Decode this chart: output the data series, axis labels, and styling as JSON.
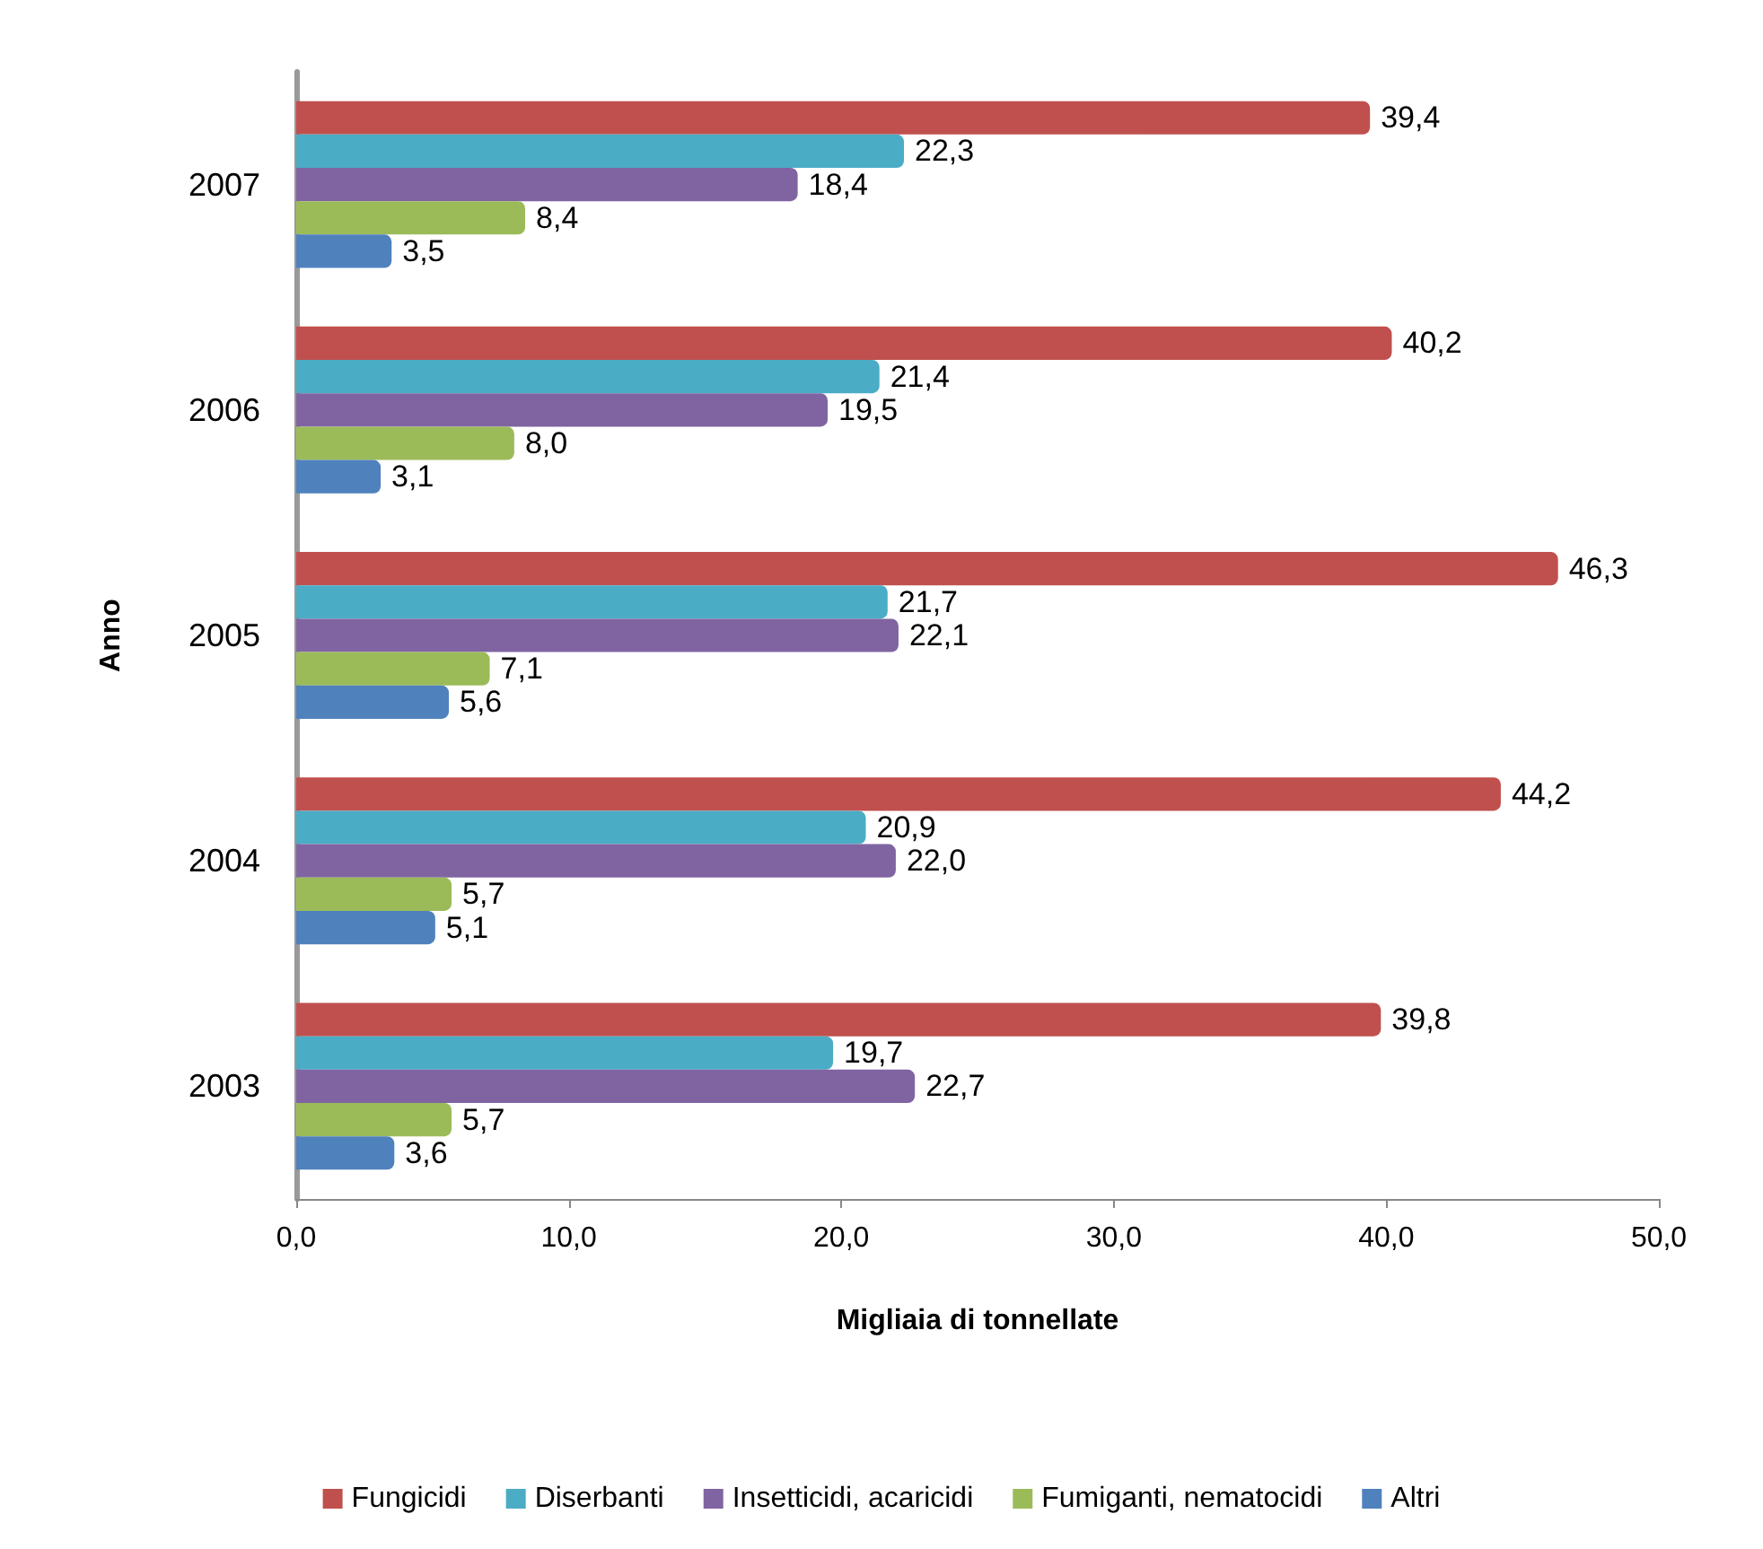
{
  "chart_data": {
    "type": "bar",
    "orientation": "horizontal",
    "xlabel": "Migliaia di tonnellate",
    "ylabel": "Anno",
    "categories": [
      "2007",
      "2006",
      "2005",
      "2004",
      "2003"
    ],
    "series": [
      {
        "name": "Fungicidi",
        "color": "#c0504d",
        "values": [
          39.4,
          40.2,
          46.3,
          44.2,
          39.8
        ],
        "value_labels": [
          "39,4",
          "40,2",
          "46,3",
          "44,2",
          "39,8"
        ]
      },
      {
        "name": "Diserbanti",
        "color": "#4bacc6",
        "values": [
          22.3,
          21.4,
          21.7,
          20.9,
          19.7
        ],
        "value_labels": [
          "22,3",
          "21,4",
          "21,7",
          "20,9",
          "19,7"
        ]
      },
      {
        "name": "Insetticidi, acaricidi",
        "color": "#8064a2",
        "values": [
          18.4,
          19.5,
          22.1,
          22.0,
          22.7
        ],
        "value_labels": [
          "18,4",
          "19,5",
          "22,1",
          "22,0",
          "22,7"
        ]
      },
      {
        "name": "Fumiganti, nematocidi",
        "color": "#9bbb59",
        "values": [
          8.4,
          8.0,
          7.1,
          5.7,
          5.7
        ],
        "value_labels": [
          "8,4",
          "8,0",
          "7,1",
          "5,7",
          "5,7"
        ]
      },
      {
        "name": "Altri",
        "color": "#4f81bd",
        "values": [
          3.5,
          3.1,
          5.6,
          5.1,
          3.6
        ],
        "value_labels": [
          "3,5",
          "3,1",
          "5,6",
          "5,1",
          "3,6"
        ]
      }
    ],
    "xlim": [
      0,
      50
    ],
    "xticks": [
      {
        "value": 0,
        "label": "0,0"
      },
      {
        "value": 10,
        "label": "10,0"
      },
      {
        "value": 20,
        "label": "20,0"
      },
      {
        "value": 30,
        "label": "30,0"
      },
      {
        "value": 40,
        "label": "40,0"
      },
      {
        "value": 50,
        "label": "50,0"
      }
    ],
    "grid": false,
    "legend": "bottom"
  }
}
